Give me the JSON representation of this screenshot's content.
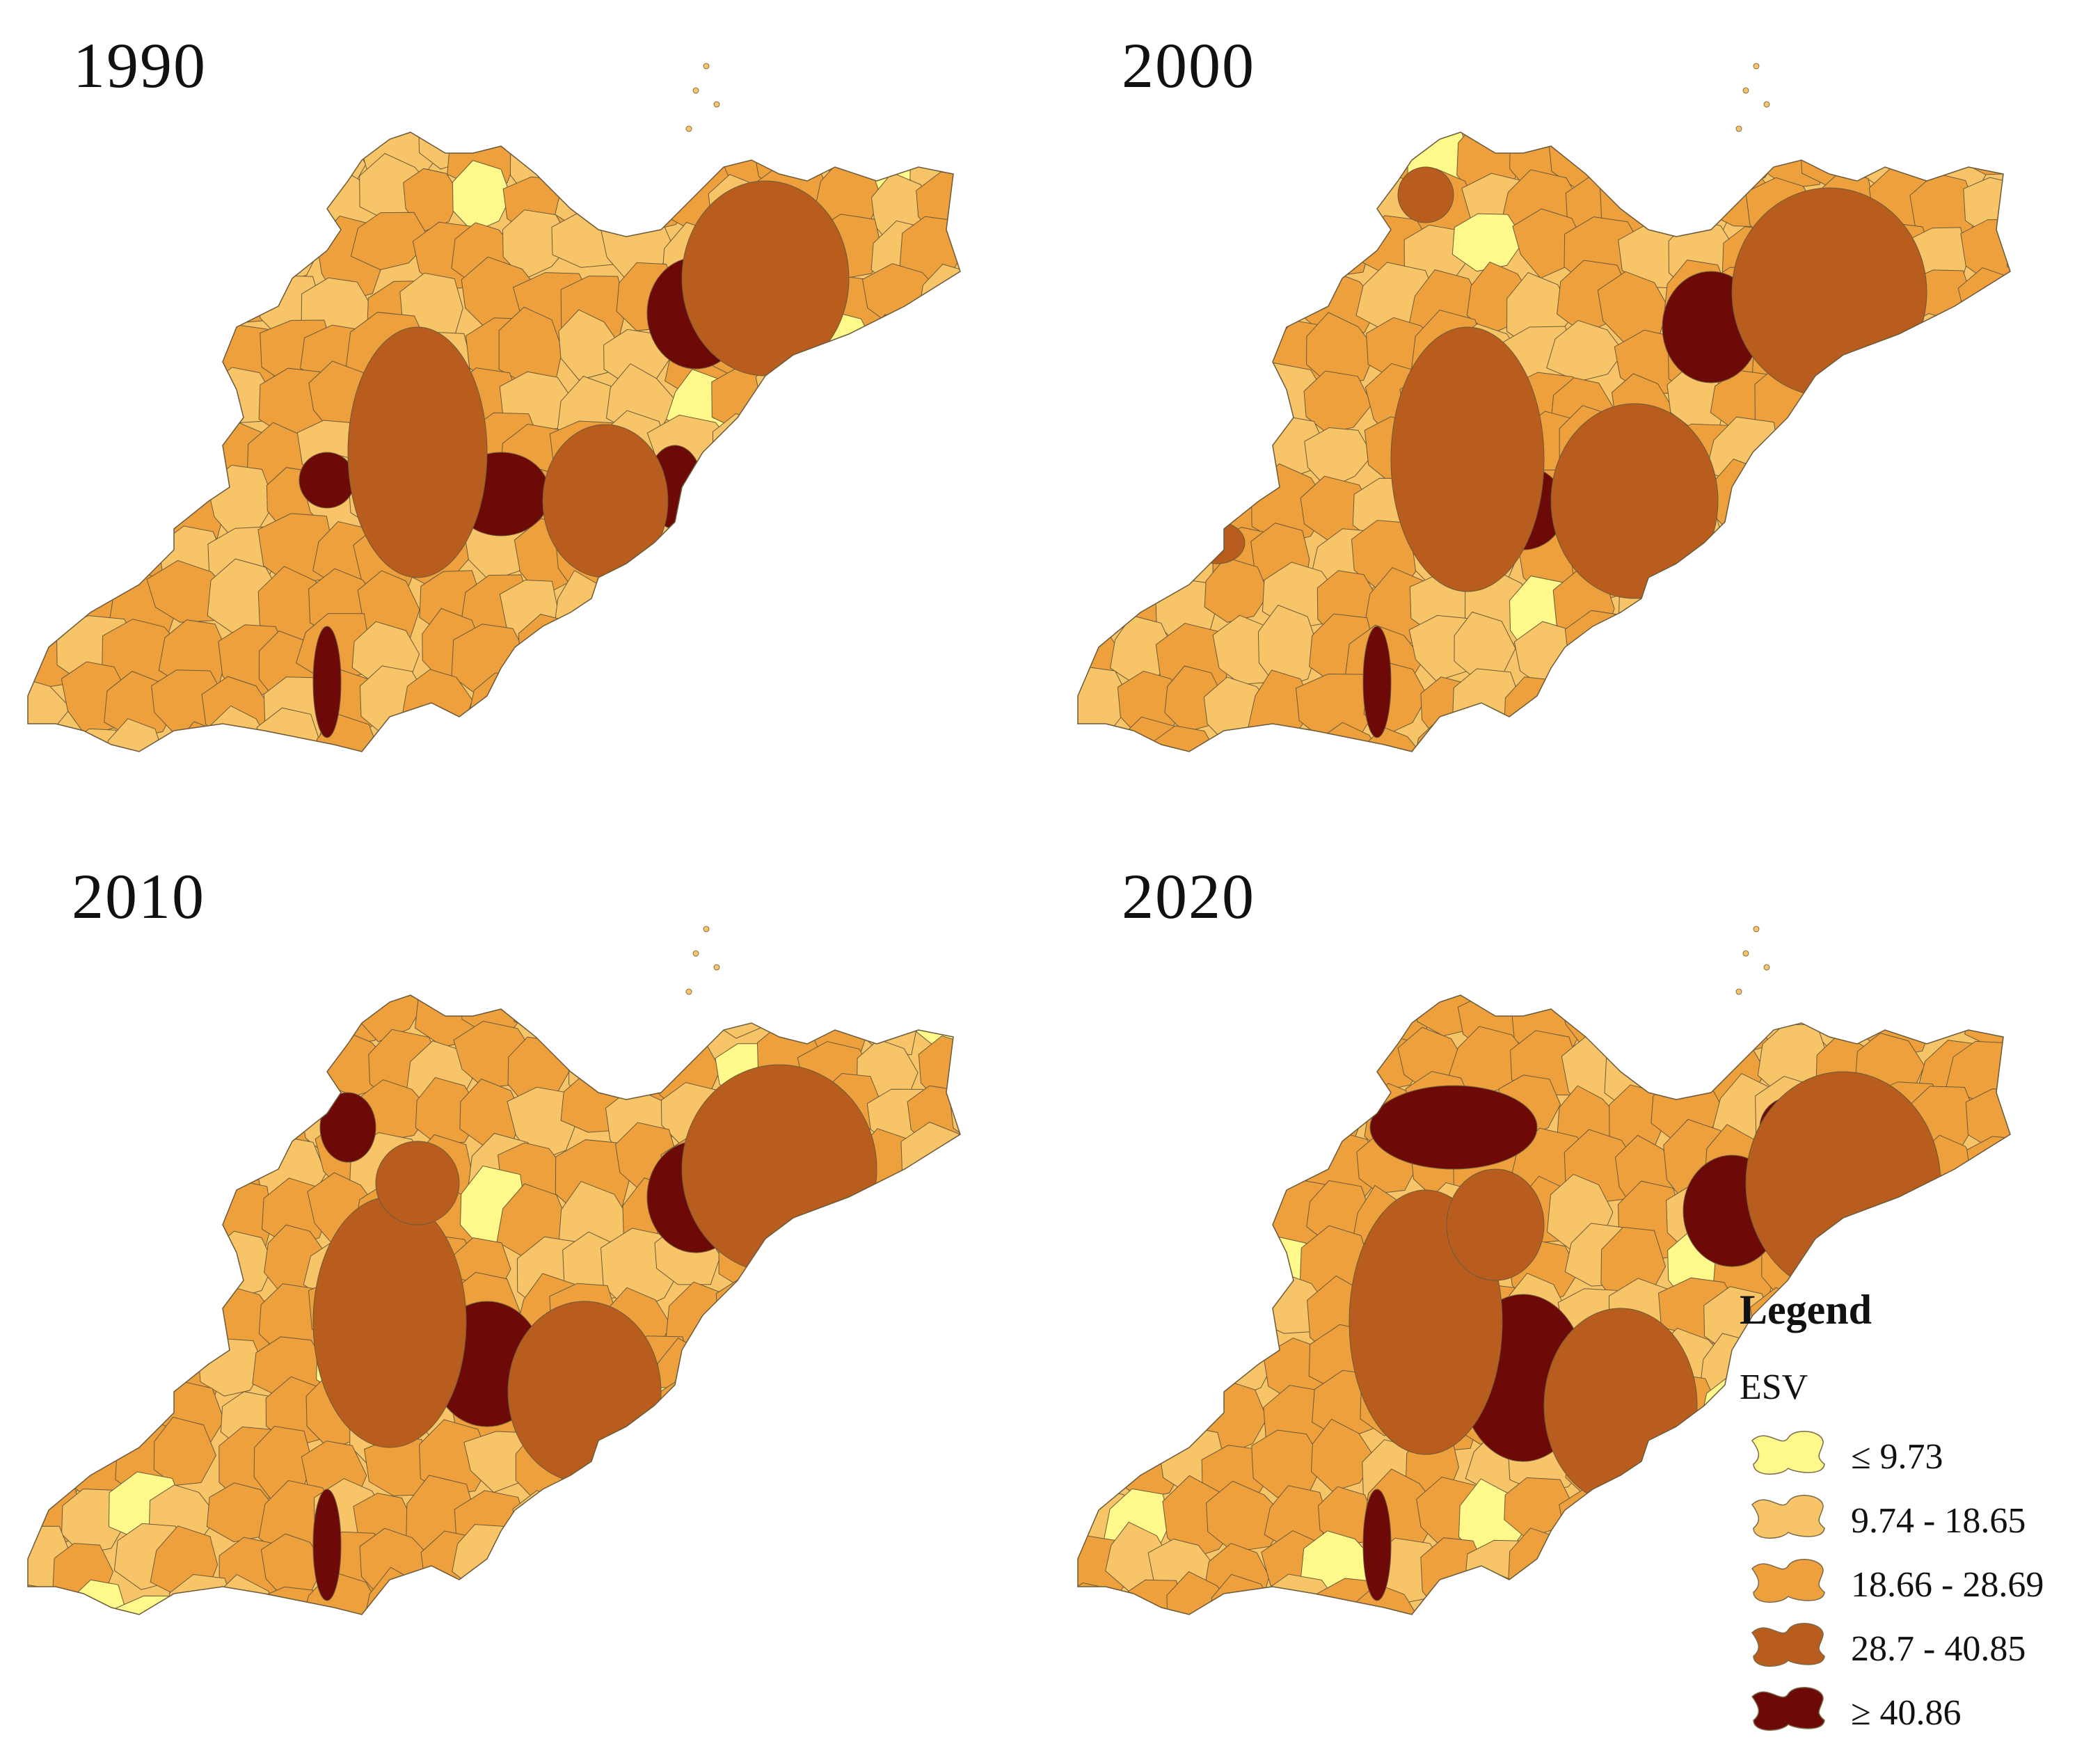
{
  "figure": {
    "panels": [
      {
        "year": "1990"
      },
      {
        "year": "2000"
      },
      {
        "year": "2010"
      },
      {
        "year": "2020"
      }
    ]
  },
  "legend": {
    "title": "Legend",
    "subtitle": "ESV",
    "classes": [
      {
        "label": "≤ 9.73",
        "color": "#fef98a"
      },
      {
        "label": "9.74 - 18.65",
        "color": "#f7c567"
      },
      {
        "label": "18.66 - 28.69",
        "color": "#eda03c"
      },
      {
        "label": "28.7 - 40.85",
        "color": "#b85d1e"
      },
      {
        "label": "≥ 40.86",
        "color": "#6d0a08"
      }
    ]
  },
  "colors": {
    "boundary": "#6b5a3a",
    "background": "#ffffff"
  }
}
